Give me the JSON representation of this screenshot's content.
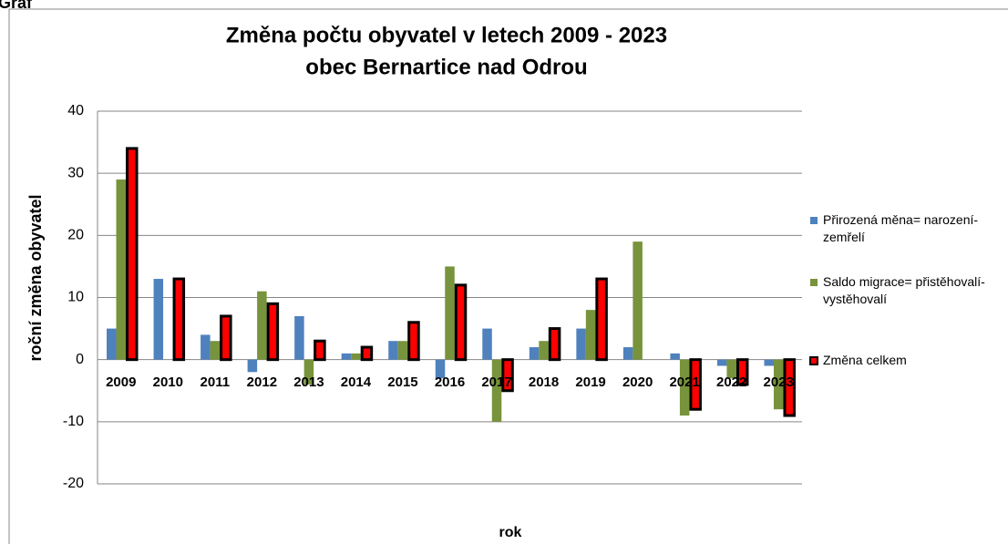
{
  "caption": "Graf",
  "chart_data": {
    "type": "bar",
    "title": "Změna počtu obyvatel v letech 2009 - 2023",
    "subtitle": "obec Bernartice nad Odrou",
    "x_label": "rok",
    "y_label": "roční změna obyvatel",
    "categories": [
      "2009",
      "2010",
      "2011",
      "2012",
      "2013",
      "2014",
      "2015",
      "2016",
      "2017",
      "2018",
      "2019",
      "2020",
      "2021",
      "2022",
      "2023"
    ],
    "series": [
      {
        "name": "Přirozená měna= narození-zemřelí",
        "color": "#4f81bd",
        "values": [
          5,
          13,
          4,
          -2,
          7,
          1,
          3,
          -3,
          5,
          2,
          5,
          2,
          1,
          -1,
          -1
        ]
      },
      {
        "name": "Saldo migrace= přistěhovalí-vystěhovalí",
        "color": "#77933c",
        "values": [
          29,
          0,
          3,
          11,
          -4,
          1,
          3,
          15,
          -10,
          3,
          8,
          19,
          -9,
          -3,
          -8
        ]
      },
      {
        "name": "Změna celkem",
        "color": "#ff0000",
        "edge_color": "#000000",
        "values": [
          34,
          13,
          7,
          9,
          3,
          2,
          6,
          12,
          -5,
          5,
          13,
          null,
          -8,
          -4,
          -9
        ]
      }
    ],
    "ylim": [
      -20,
      40
    ],
    "yticks": [
      -20,
      -10,
      0,
      10,
      20,
      30,
      40
    ],
    "grid": true,
    "legend": "right"
  }
}
